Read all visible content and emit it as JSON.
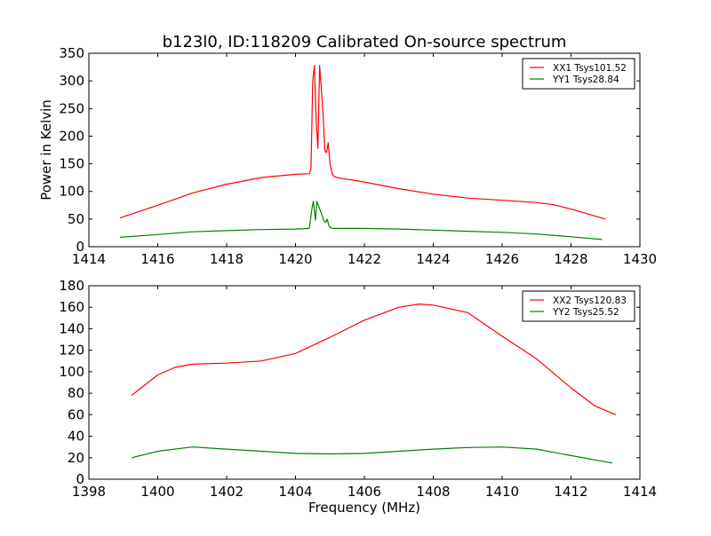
{
  "chart_data": [
    {
      "type": "line",
      "title": "b123l0, ID:118209 Calibrated On-source spectrum",
      "xlabel": "",
      "ylabel": "Power in Kelvin",
      "xlim": [
        1414,
        1430
      ],
      "ylim": [
        0,
        350
      ],
      "xticks": [
        1414,
        1416,
        1418,
        1420,
        1422,
        1424,
        1426,
        1428,
        1430
      ],
      "yticks": [
        0,
        50,
        100,
        150,
        200,
        250,
        300,
        350
      ],
      "legend_position": "top-right",
      "grid": false,
      "series": [
        {
          "name": "XX1 Tsys101.52",
          "color": "#ff0000",
          "x": [
            1414.9,
            1416,
            1417,
            1418,
            1419,
            1420,
            1420.4,
            1420.45,
            1420.5,
            1420.55,
            1420.6,
            1420.65,
            1420.7,
            1420.75,
            1420.8,
            1420.85,
            1420.9,
            1420.95,
            1421.0,
            1421.05,
            1421.1,
            1421.2,
            1422,
            1423,
            1424,
            1425,
            1426,
            1427,
            1427.5,
            1428,
            1429
          ],
          "y": [
            52,
            75,
            97,
            113,
            125,
            131,
            132,
            140,
            300,
            328,
            230,
            178,
            328,
            285,
            240,
            175,
            170,
            188,
            150,
            135,
            128,
            125,
            117,
            105,
            95,
            88,
            84,
            80,
            76,
            68,
            50
          ]
        },
        {
          "name": "YY1 Tsys28.84",
          "color": "#008000",
          "x": [
            1414.9,
            1416,
            1417,
            1418,
            1419,
            1420,
            1420.4,
            1420.48,
            1420.52,
            1420.58,
            1420.62,
            1420.68,
            1420.75,
            1420.82,
            1420.88,
            1420.92,
            1420.97,
            1421.02,
            1421.1,
            1422,
            1423,
            1424,
            1425,
            1426,
            1427,
            1428,
            1428.9
          ],
          "y": [
            17,
            22,
            27,
            29,
            31,
            32,
            33,
            70,
            82,
            48,
            82,
            72,
            60,
            47,
            44,
            50,
            38,
            34,
            33,
            33,
            32,
            30,
            28,
            26,
            23,
            18,
            13
          ]
        }
      ]
    },
    {
      "type": "line",
      "title": "",
      "xlabel": "Frequency (MHz)",
      "ylabel": "",
      "xlim": [
        1398,
        1414
      ],
      "ylim": [
        0,
        180
      ],
      "xticks": [
        1398,
        1400,
        1402,
        1404,
        1406,
        1408,
        1410,
        1412,
        1414
      ],
      "yticks": [
        0,
        20,
        40,
        60,
        80,
        100,
        120,
        140,
        160,
        180
      ],
      "legend_position": "top-right",
      "grid": false,
      "series": [
        {
          "name": "XX2 Tsys120.83",
          "color": "#ff0000",
          "x": [
            1399.24,
            1400,
            1400.5,
            1401,
            1402,
            1403,
            1404,
            1405,
            1406,
            1407,
            1407.6,
            1408,
            1409,
            1410,
            1411,
            1412,
            1412.7,
            1413.3
          ],
          "y": [
            78,
            97,
            104,
            107,
            108,
            110,
            117,
            132,
            148,
            160,
            163,
            162,
            155,
            133,
            112,
            85,
            68,
            60
          ]
        },
        {
          "name": "YY2 Tsys25.52",
          "color": "#008000",
          "x": [
            1399.24,
            1400,
            1401,
            1402,
            1403,
            1404,
            1405,
            1406,
            1407,
            1408,
            1409,
            1410,
            1411,
            1412,
            1413.2
          ],
          "y": [
            20,
            26,
            30,
            28,
            26,
            24,
            23.5,
            24,
            26,
            28,
            29.5,
            30,
            28,
            22,
            15
          ]
        }
      ]
    }
  ]
}
